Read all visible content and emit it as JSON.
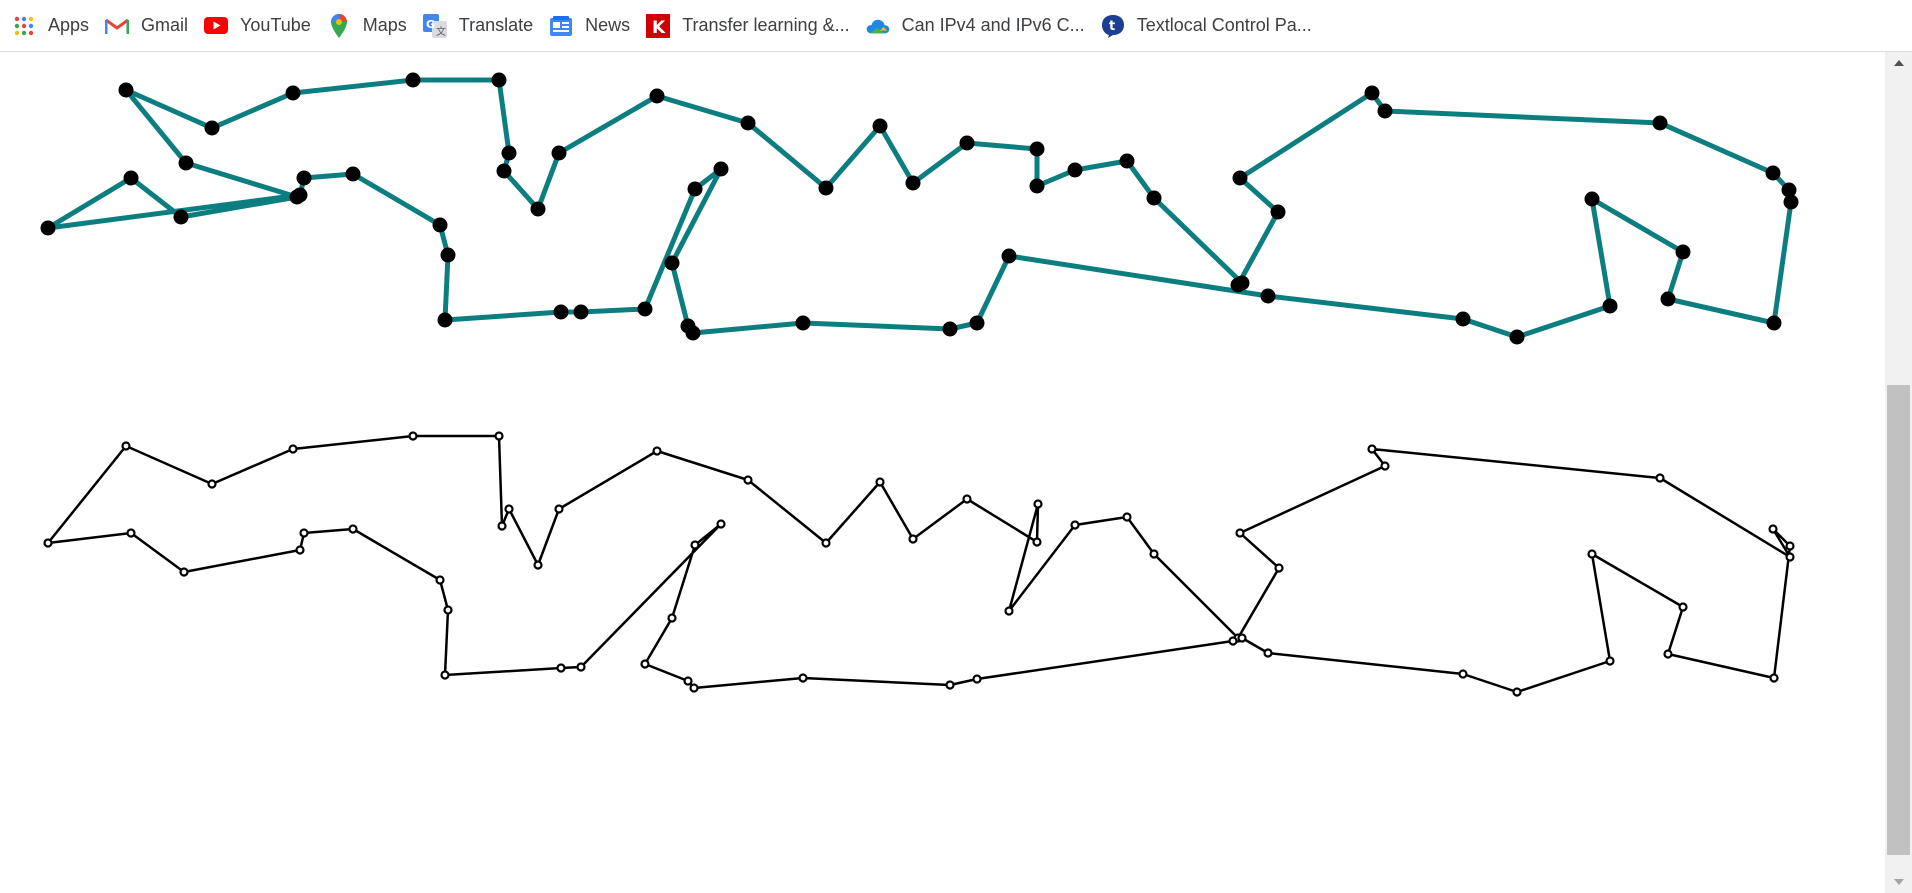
{
  "bookmarks": [
    {
      "label": "Apps",
      "icon": "apps-grid-icon"
    },
    {
      "label": "Gmail",
      "icon": "gmail-icon"
    },
    {
      "label": "YouTube",
      "icon": "youtube-icon"
    },
    {
      "label": "Maps",
      "icon": "maps-pin-icon"
    },
    {
      "label": "Translate",
      "icon": "translate-icon"
    },
    {
      "label": "News",
      "icon": "news-icon"
    },
    {
      "label": "Transfer learning &...",
      "icon": "k-logo-icon"
    },
    {
      "label": "Can IPv4 and IPv6 C...",
      "icon": "cloud-icon"
    },
    {
      "label": "Textlocal Control Pa...",
      "icon": "textlocal-icon"
    }
  ],
  "colors": {
    "route_top": "#0c7e80",
    "route_bottom": "#000000",
    "nodes": "#000000"
  },
  "scroll": {
    "thumb_start_fraction": 0.39,
    "thumb_size_fraction": 0.59
  }
}
